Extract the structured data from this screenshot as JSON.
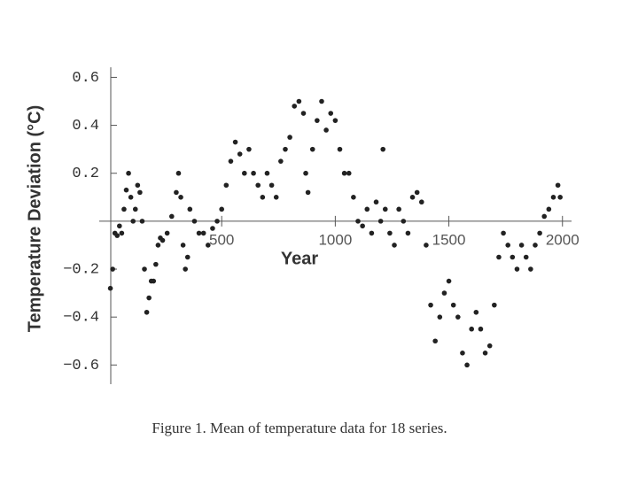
{
  "chart_data": {
    "type": "scatter",
    "y_label": "Temperature Deviation (°C)",
    "x_label": "Year",
    "caption": "Figure 1. Mean of temperature data for 18 series.",
    "color": "#222222",
    "xlim": [
      0,
      2040
    ],
    "ylim": [
      -0.68,
      0.62
    ],
    "xticks": [
      500,
      1000,
      1500,
      2000
    ],
    "yticks": [
      0.6,
      0.4,
      0.2,
      {
        "value": -0.2,
        "label": "−0.2"
      },
      {
        "value": -0.4,
        "label": "−0.4"
      },
      {
        "value": -0.6,
        "label": "−0.6"
      }
    ],
    "x": [
      10,
      20,
      30,
      40,
      50,
      60,
      70,
      80,
      90,
      100,
      110,
      120,
      130,
      140,
      150,
      160,
      170,
      180,
      190,
      200,
      210,
      220,
      230,
      240,
      260,
      280,
      300,
      310,
      320,
      330,
      340,
      350,
      360,
      380,
      400,
      420,
      440,
      460,
      480,
      500,
      520,
      540,
      560,
      580,
      600,
      620,
      640,
      660,
      680,
      700,
      720,
      740,
      760,
      780,
      800,
      820,
      840,
      860,
      870,
      880,
      900,
      920,
      940,
      960,
      980,
      1000,
      1020,
      1040,
      1060,
      1080,
      1100,
      1120,
      1140,
      1160,
      1180,
      1200,
      1210,
      1220,
      1240,
      1260,
      1280,
      1300,
      1320,
      1340,
      1360,
      1380,
      1400,
      1420,
      1440,
      1460,
      1480,
      1500,
      1520,
      1540,
      1560,
      1580,
      1600,
      1620,
      1640,
      1660,
      1680,
      1700,
      1720,
      1740,
      1760,
      1780,
      1800,
      1820,
      1840,
      1860,
      1880,
      1900,
      1920,
      1940,
      1960,
      1980,
      1990
    ],
    "values": [
      -0.28,
      -0.2,
      -0.05,
      -0.06,
      -0.02,
      -0.05,
      0.05,
      0.13,
      0.2,
      0.1,
      0.0,
      0.05,
      0.15,
      0.12,
      0.0,
      -0.2,
      -0.38,
      -0.32,
      -0.25,
      -0.25,
      -0.18,
      -0.1,
      -0.07,
      -0.08,
      -0.05,
      0.02,
      0.12,
      0.2,
      0.1,
      -0.1,
      -0.2,
      -0.15,
      0.05,
      0.0,
      -0.05,
      -0.05,
      -0.1,
      -0.03,
      0.0,
      0.05,
      0.15,
      0.25,
      0.33,
      0.28,
      0.2,
      0.3,
      0.2,
      0.15,
      0.1,
      0.2,
      0.15,
      0.1,
      0.25,
      0.3,
      0.35,
      0.48,
      0.5,
      0.45,
      0.2,
      0.12,
      0.3,
      0.42,
      0.5,
      0.38,
      0.45,
      0.42,
      0.3,
      0.2,
      0.2,
      0.1,
      0.0,
      -0.02,
      0.05,
      -0.05,
      0.08,
      0.0,
      0.3,
      0.05,
      -0.05,
      -0.1,
      0.05,
      0.0,
      -0.05,
      0.1,
      0.12,
      0.08,
      -0.1,
      -0.35,
      -0.5,
      -0.4,
      -0.3,
      -0.25,
      -0.35,
      -0.4,
      -0.55,
      -0.6,
      -0.45,
      -0.38,
      -0.45,
      -0.55,
      -0.52,
      -0.35,
      -0.15,
      -0.05,
      -0.1,
      -0.15,
      -0.2,
      -0.1,
      -0.15,
      -0.2,
      -0.1,
      -0.05,
      0.02,
      0.05,
      0.1,
      0.15,
      0.1
    ]
  }
}
